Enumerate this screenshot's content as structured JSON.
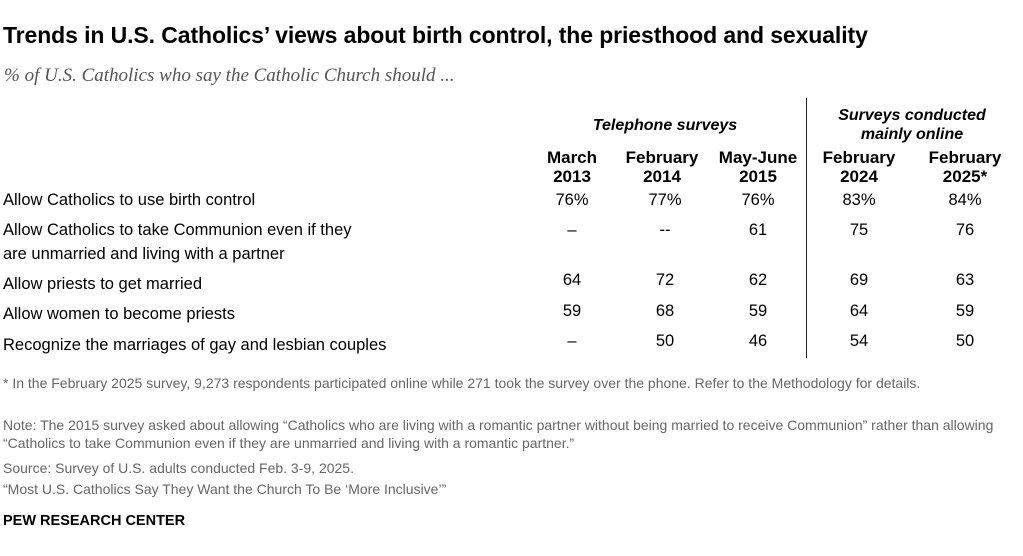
{
  "header": {
    "title": "Trends in U.S. Catholics’ views about birth control, the priesthood and sexuality",
    "subtitle": "% of U.S. Catholics who say the Catholic Church should ..."
  },
  "chart_data": {
    "type": "table",
    "groups": [
      {
        "label": "Telephone surveys"
      },
      {
        "label_lines": [
          "Surveys conducted",
          "mainly online"
        ]
      }
    ],
    "columns": [
      {
        "line1": "March",
        "line2": "2013"
      },
      {
        "line1": "February",
        "line2": "2014"
      },
      {
        "line1": "May-June",
        "line2": "2015"
      },
      {
        "line1": "February",
        "line2": "2024"
      },
      {
        "line1": "February",
        "line2": "2025*"
      }
    ],
    "rows": [
      {
        "label_lines": [
          "Allow Catholics to use birth control"
        ],
        "values": [
          "76%",
          "77%",
          "76%",
          "83%",
          "84%"
        ]
      },
      {
        "label_lines": [
          "Allow Catholics to take Communion even if they",
          "are unmarried and living with a partner"
        ],
        "values": [
          "–",
          "--",
          "61",
          "75",
          "76"
        ]
      },
      {
        "label_lines": [
          "Allow priests to get married"
        ],
        "values": [
          "64",
          "72",
          "62",
          "69",
          "63"
        ]
      },
      {
        "label_lines": [
          "Allow women to become priests"
        ],
        "values": [
          "59",
          "68",
          "59",
          "64",
          "59"
        ]
      },
      {
        "label_lines": [
          "Recognize the marriages of gay and lesbian couples"
        ],
        "values": [
          "–",
          "50",
          "46",
          "54",
          "50"
        ]
      }
    ]
  },
  "footnotes": {
    "asterisk_note": "* In the February 2025 survey, 9,273 respondents participated online while 271 took the survey over the phone. Refer to the Methodology for details.",
    "note": "Note: The 2015 survey asked about allowing “Catholics who are living with a romantic partner without being married to receive Communion” rather than allowing “Catholics to take Communion even if they are unmarried and living with a romantic partner.”",
    "source": "Source: Survey of U.S. adults conducted Feb. 3-9, 2025.",
    "report": "“Most U.S. Catholics Say They Want the Church To Be ‘More Inclusive’”"
  },
  "branding": {
    "name": "PEW RESEARCH CENTER"
  }
}
